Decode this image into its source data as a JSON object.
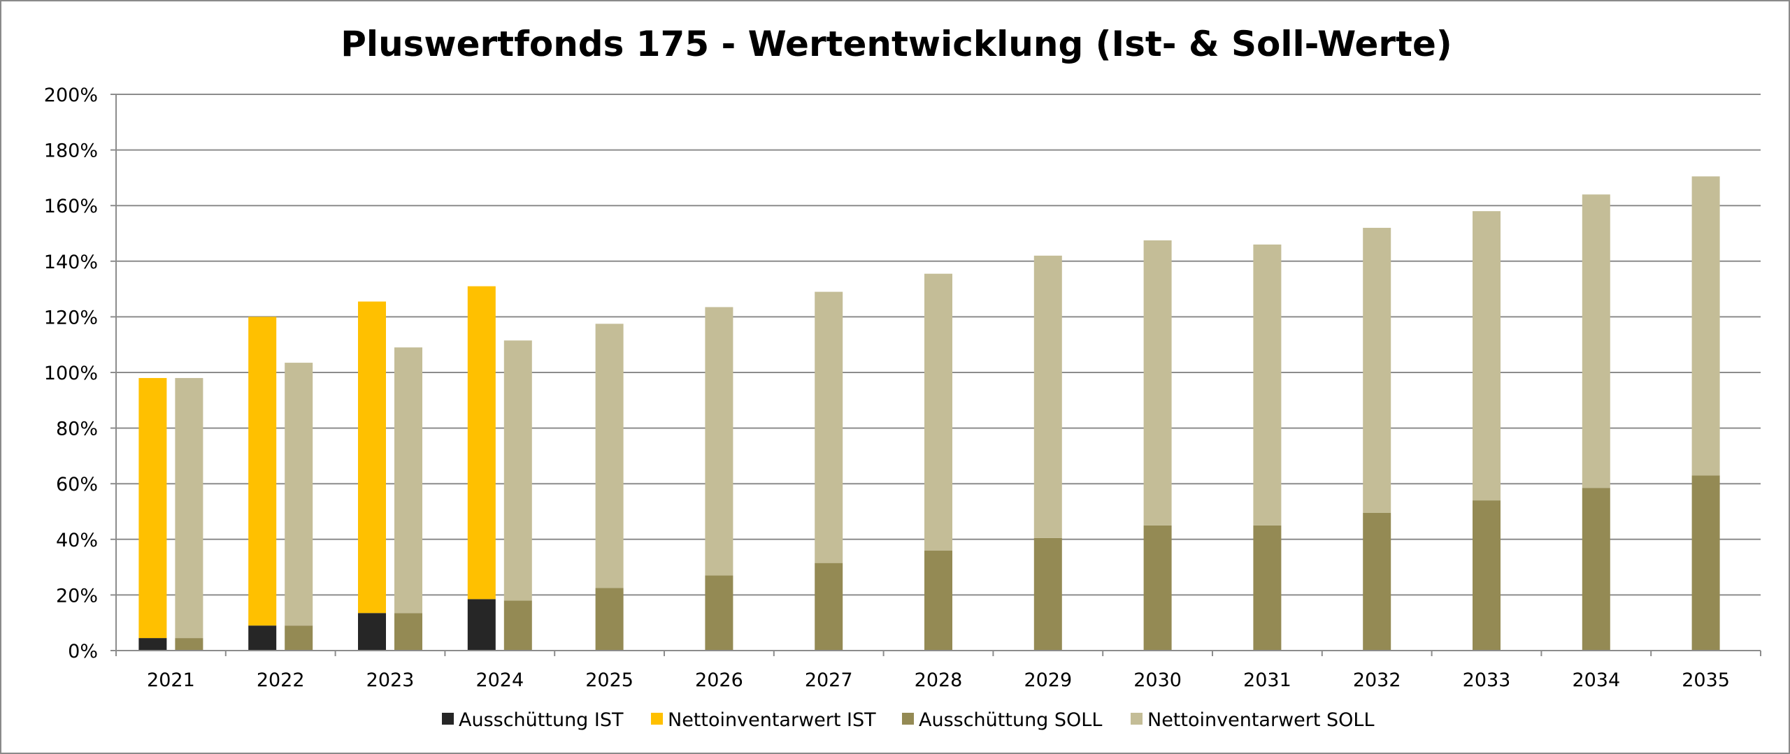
{
  "chart_data": {
    "type": "bar",
    "title": "Pluswertfonds 175 - Wertentwicklung (Ist- & Soll-Werte)",
    "xlabel": "",
    "ylabel": "",
    "ylim": [
      0,
      200
    ],
    "y_ticks": [
      "0%",
      "20%",
      "40%",
      "60%",
      "80%",
      "100%",
      "120%",
      "140%",
      "160%",
      "180%",
      "200%"
    ],
    "y_tick_values": [
      0,
      20,
      40,
      60,
      80,
      100,
      120,
      140,
      160,
      180,
      200
    ],
    "categories": [
      "2021",
      "2022",
      "2023",
      "2024",
      "2025",
      "2026",
      "2027",
      "2028",
      "2029",
      "2030",
      "2031",
      "2032",
      "2033",
      "2034",
      "2035"
    ],
    "grid": true,
    "legend_position": "bottom",
    "stacks": [
      {
        "name": "IST",
        "series": [
          {
            "name": "Ausschüttung IST",
            "color": "#262626",
            "values": [
              4.5,
              9,
              13.5,
              18.5,
              null,
              null,
              null,
              null,
              null,
              null,
              null,
              null,
              null,
              null,
              null
            ]
          },
          {
            "name": "Nettoinventarwert IST",
            "color": "#ffc000",
            "values": [
              93.5,
              111,
              112,
              112.5,
              null,
              null,
              null,
              null,
              null,
              null,
              null,
              null,
              null,
              null,
              null
            ]
          }
        ]
      },
      {
        "name": "SOLL",
        "series": [
          {
            "name": "Ausschüttung SOLL",
            "color": "#948a54",
            "values": [
              4.5,
              9,
              13.5,
              18,
              22.5,
              27,
              31.5,
              36,
              40.5,
              45,
              45,
              49.5,
              54,
              58.5,
              63
            ]
          },
          {
            "name": "Nettoinventarwert SOLL",
            "color": "#c4bd97",
            "values": [
              93.5,
              94.5,
              95.5,
              93.5,
              95,
              96.5,
              97.5,
              99.5,
              101.5,
              102.5,
              101,
              102.5,
              104,
              105.5,
              107.5
            ]
          }
        ]
      }
    ],
    "legend": [
      {
        "name": "Ausschüttung IST",
        "color": "#262626"
      },
      {
        "name": "Nettoinventarwert IST",
        "color": "#ffc000"
      },
      {
        "name": "Ausschüttung SOLL",
        "color": "#948a54"
      },
      {
        "name": "Nettoinventarwert SOLL",
        "color": "#c4bd97"
      }
    ],
    "colors": {
      "gridline": "#8c8c8c",
      "axis": "#8c8c8c",
      "frame": "#8a8a8a"
    }
  }
}
